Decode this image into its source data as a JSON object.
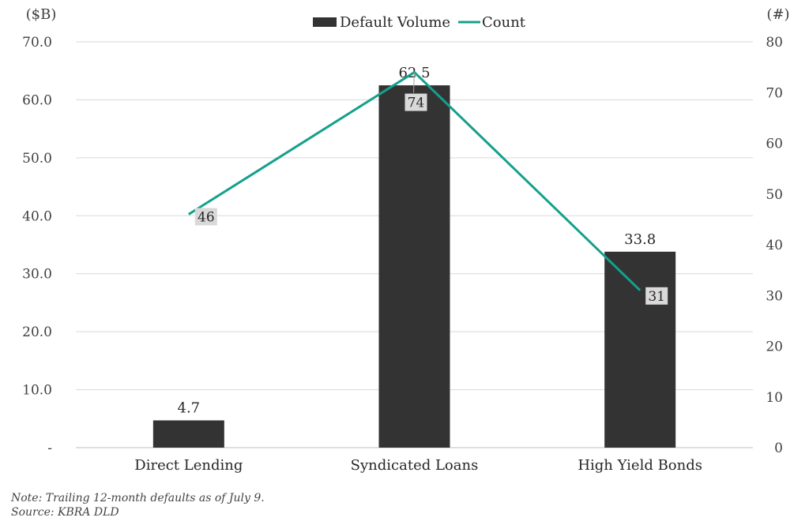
{
  "chart_data": {
    "type": "bar",
    "categories": [
      "Direct Lending",
      "Syndicated Loans",
      "High Yield Bonds"
    ],
    "series": [
      {
        "name": "Default Volume",
        "type": "bar",
        "axis": "left",
        "values": [
          4.7,
          62.5,
          33.8
        ],
        "labels": [
          "4.7",
          "62.5",
          "33.8"
        ],
        "color": "#333333"
      },
      {
        "name": "Count",
        "type": "line",
        "axis": "right",
        "values": [
          46,
          74,
          31
        ],
        "labels": [
          "46",
          "74",
          "31"
        ],
        "color": "#15a08c"
      }
    ],
    "left_axis": {
      "unit_label": "($B)",
      "ylim": [
        0,
        70
      ],
      "ticks": [
        "-",
        "10.0",
        "20.0",
        "30.0",
        "40.0",
        "50.0",
        "60.0",
        "70.0"
      ]
    },
    "right_axis": {
      "unit_label": "(#)",
      "ylim": [
        0,
        80
      ],
      "ticks": [
        "0",
        "10",
        "20",
        "30",
        "40",
        "50",
        "60",
        "70",
        "80"
      ]
    },
    "grid": true,
    "legend_position": "top-center"
  },
  "notes": {
    "note": "Note: Trailing 12-month defaults as of July 9.",
    "source": "Source: KBRA DLD"
  }
}
